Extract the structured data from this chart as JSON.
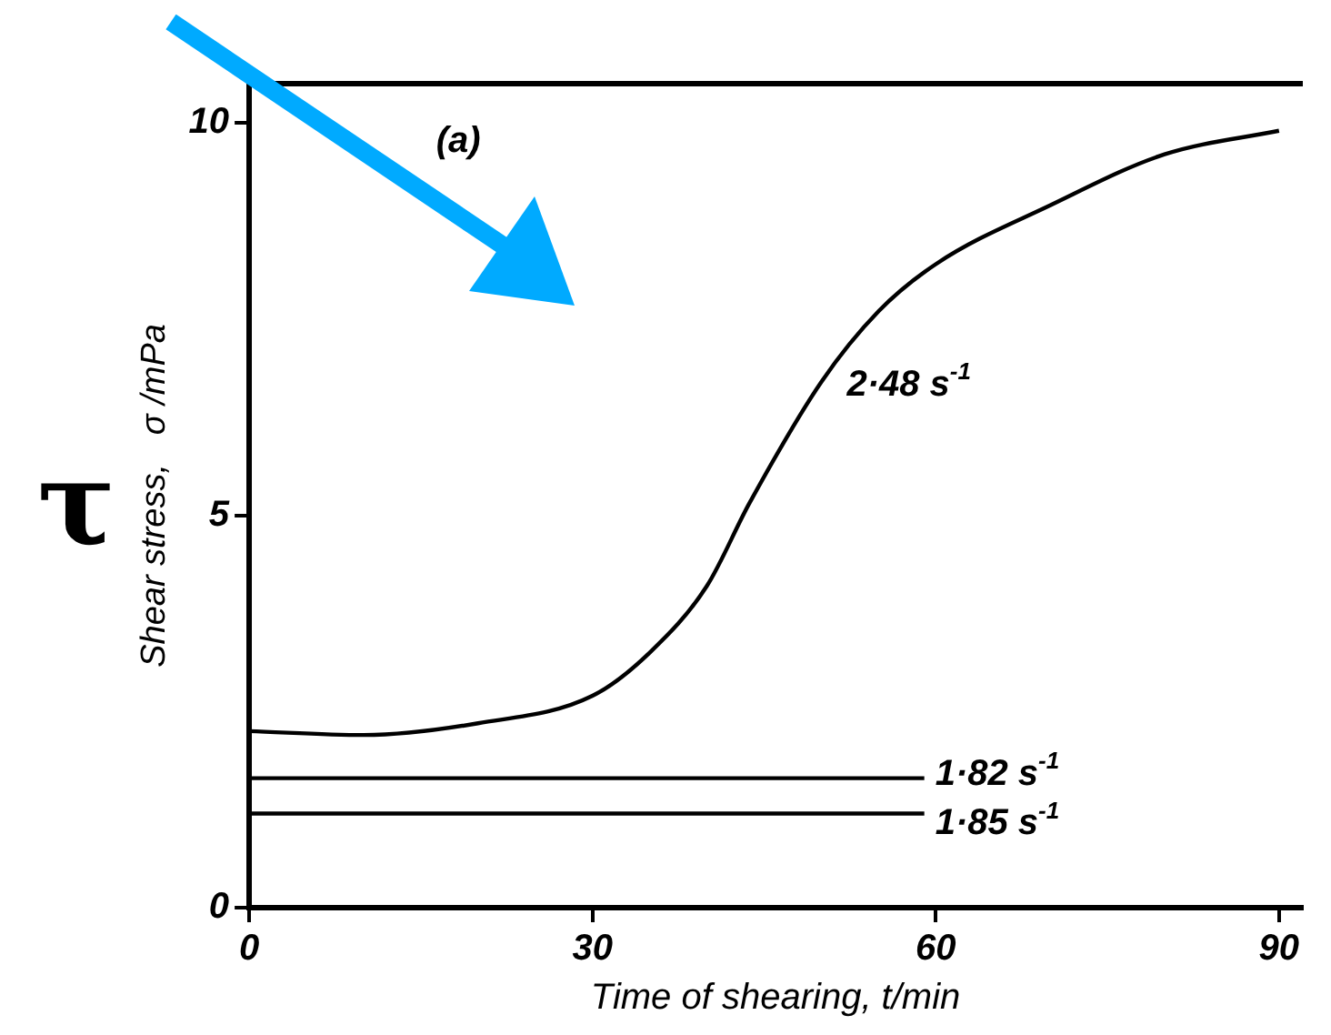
{
  "chart_data": {
    "type": "line",
    "xlabel": "Time of shearing, t/min",
    "ylabel": "Shear stress,   σ /mPa",
    "annotations": [
      "(a)",
      "τ"
    ],
    "xlim": [
      0,
      92
    ],
    "xticks": [
      0,
      30,
      60,
      90
    ],
    "ylim": [
      0,
      10.5
    ],
    "yticks": [
      0,
      5,
      10
    ],
    "grid": false,
    "legend": false,
    "marker": "none",
    "line_style": "solid",
    "series": [
      {
        "name": "2·48 s$^{-1}$",
        "color": "#000000",
        "x": [
          0,
          10,
          20,
          30,
          35,
          40,
          43.7,
          50,
          55,
          60,
          70,
          80,
          90
        ],
        "values": [
          2.25,
          2.2,
          2.35,
          2.7,
          3.25,
          4.1,
          5.15,
          6.7,
          7.6,
          8.2,
          8.95,
          9.6,
          9.9
        ]
      },
      {
        "name": "1·82 s$^{-1}$",
        "color": "#000000",
        "x": [
          0,
          59
        ],
        "values": [
          1.65,
          1.65
        ]
      },
      {
        "name": "1·85 s$^{-1}$",
        "color": "#000000",
        "x": [
          0,
          59
        ],
        "values": [
          1.2,
          1.2
        ]
      }
    ]
  }
}
